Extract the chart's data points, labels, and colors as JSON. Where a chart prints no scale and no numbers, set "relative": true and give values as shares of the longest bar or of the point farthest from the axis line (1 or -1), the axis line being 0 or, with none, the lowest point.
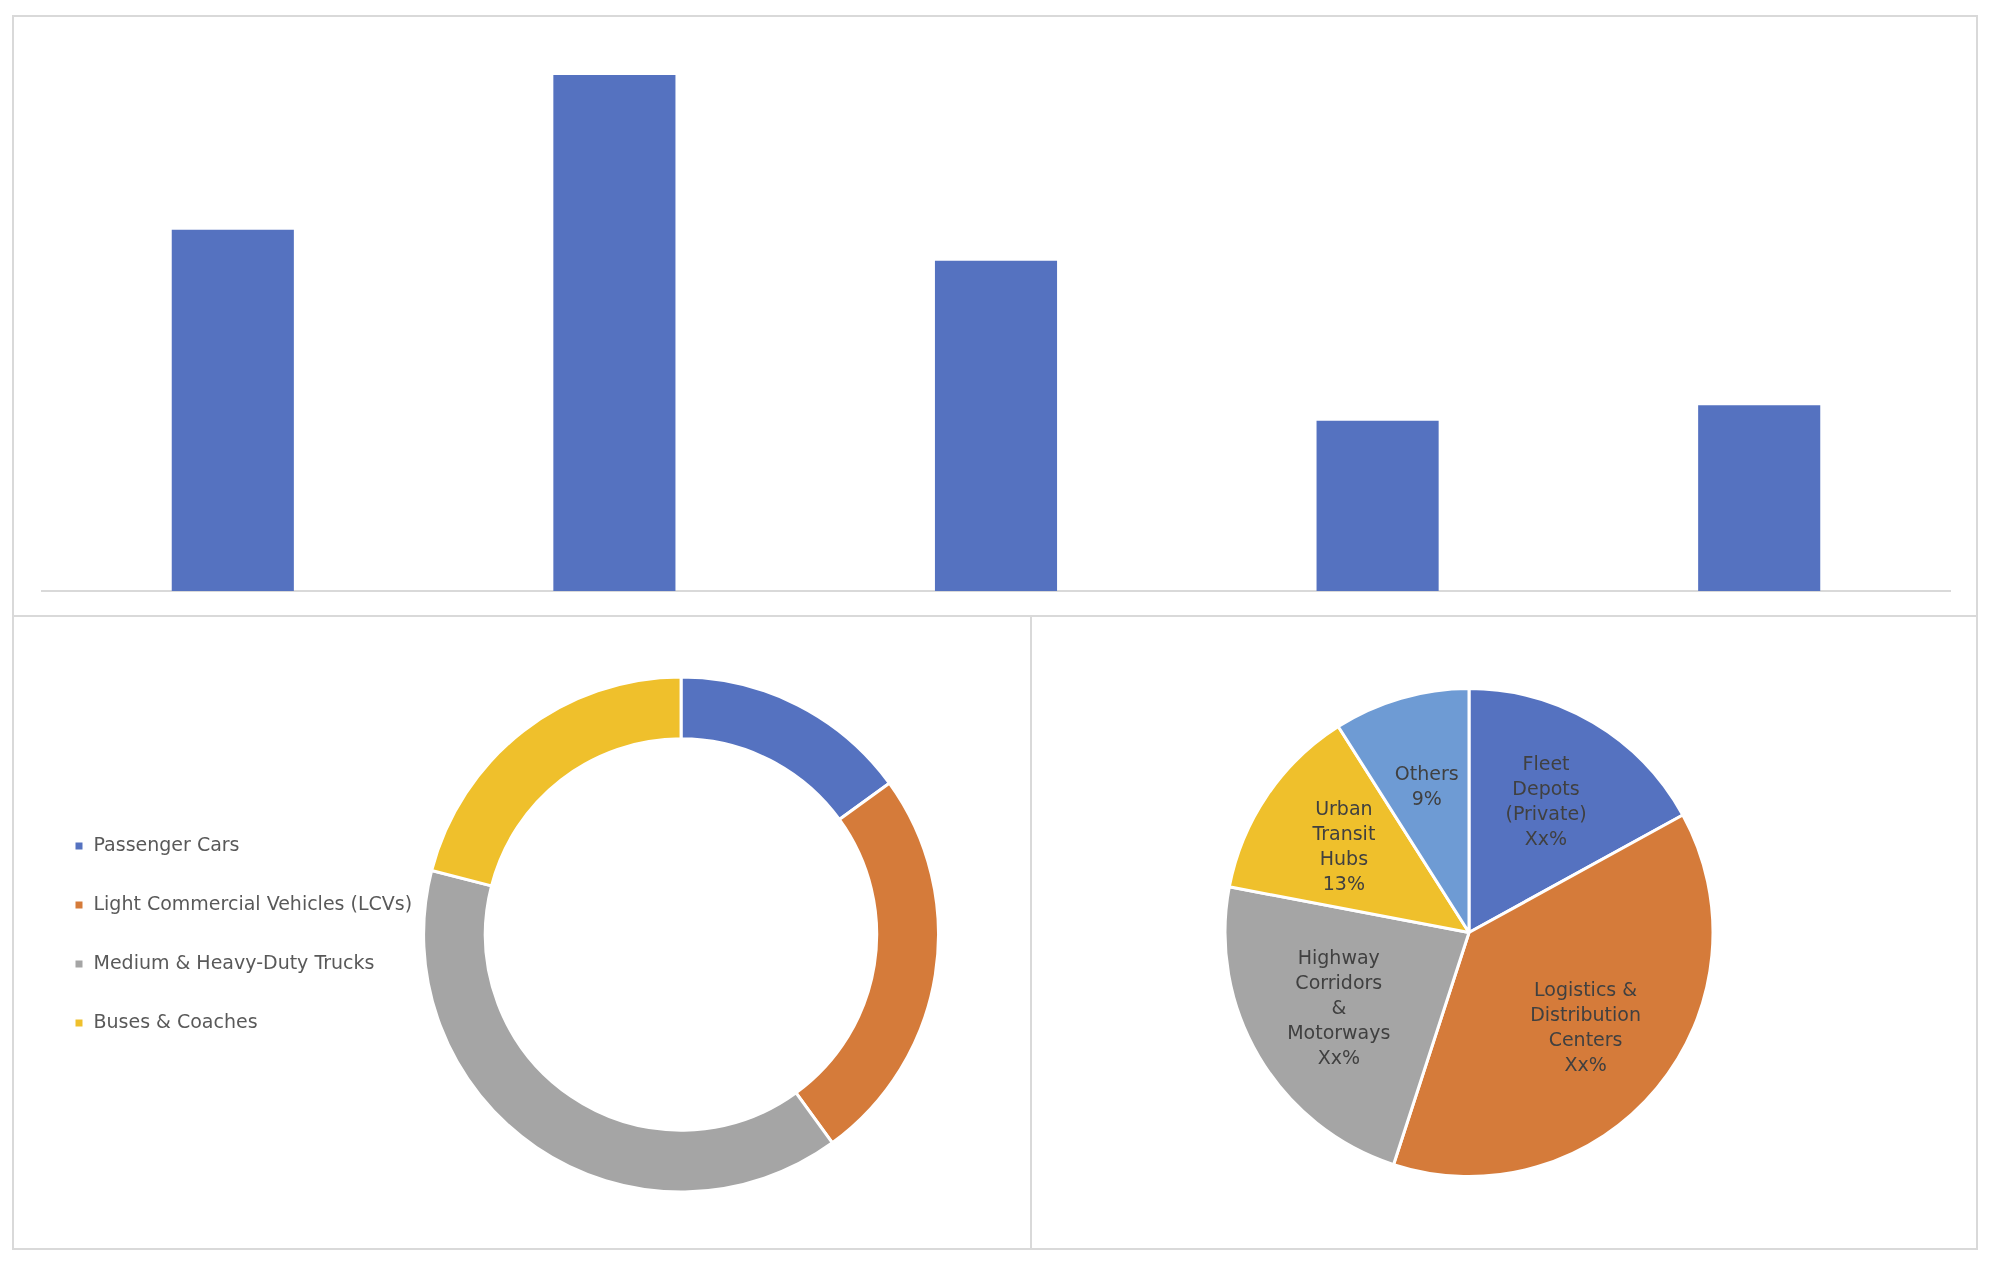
{
  "chart_data": [
    {
      "type": "bar",
      "relative": true,
      "categories": [
        null,
        null,
        null,
        null,
        null
      ],
      "values": [
        0.7,
        1,
        0.64,
        0.33,
        0.36
      ],
      "color": "#5572c0",
      "grid": false
    },
    {
      "type": "donut",
      "categories": [
        "Passenger Cars",
        "Light Commercial Vehicles (LCVs)",
        "Medium & Heavy-Duty Trucks",
        "Buses & Coaches"
      ],
      "values": [
        15,
        25,
        39,
        21
      ],
      "colors": [
        "#5572c0",
        "#d57b3a",
        "#a5a5a5",
        "#efc02c"
      ],
      "legend": "left"
    },
    {
      "type": "pie",
      "categories": [
        "Fleet Depots (Private)",
        "Logistics & Distribution Centers",
        "Highway Corridors & Motorways",
        "Urban Transit Hubs",
        "Others"
      ],
      "values": [
        17,
        38,
        23,
        13,
        9
      ],
      "colors": [
        "#5572c0",
        "#d57b3a",
        "#a5a5a5",
        "#efc02c",
        "#6e9bd4"
      ],
      "value_labels": [
        "Xx%",
        "Xx%",
        "Xx%",
        "13%",
        "9%"
      ]
    }
  ]
}
